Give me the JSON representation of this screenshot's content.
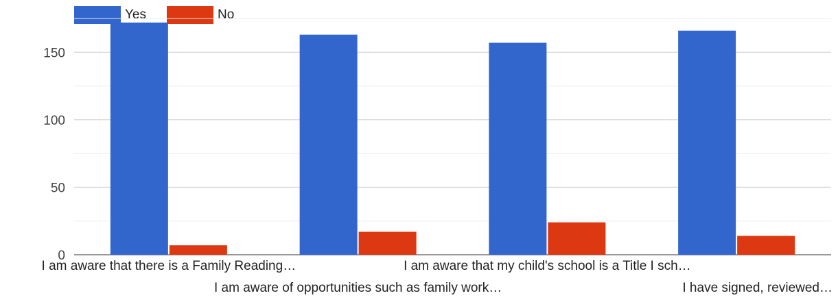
{
  "chart_data": {
    "type": "bar",
    "categories": [
      "I am aware that there is a Family Reading…",
      "I am aware of opportunities such as family work…",
      "I am aware that my child's school is a Title I sch…",
      "I have signed, reviewed…"
    ],
    "series": [
      {
        "name": "Yes",
        "color": "#3366cc",
        "values": [
          172,
          163,
          157,
          166
        ]
      },
      {
        "name": "No",
        "color": "#dc3912",
        "values": [
          7,
          17,
          24,
          14
        ]
      }
    ],
    "ylim": [
      0,
      175
    ],
    "yticks": [
      0,
      50,
      100,
      150
    ],
    "grid": true,
    "legend_position": "top-left"
  }
}
